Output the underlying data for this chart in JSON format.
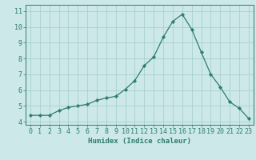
{
  "x": [
    0,
    1,
    2,
    3,
    4,
    5,
    6,
    7,
    8,
    9,
    10,
    11,
    12,
    13,
    14,
    15,
    16,
    17,
    18,
    19,
    20,
    21,
    22,
    23
  ],
  "y": [
    4.4,
    4.4,
    4.4,
    4.7,
    4.9,
    5.0,
    5.1,
    5.35,
    5.5,
    5.6,
    6.05,
    6.6,
    7.55,
    8.1,
    9.35,
    10.35,
    10.8,
    9.85,
    8.4,
    7.0,
    6.2,
    5.25,
    4.85,
    4.2
  ],
  "line_color": "#2e7d6e",
  "marker": "D",
  "marker_size": 2.2,
  "bg_color": "#cce8e8",
  "grid_color": "#aacfcf",
  "tick_color": "#2e7d6e",
  "label_color": "#2e7d6e",
  "xlabel": "Humidex (Indice chaleur)",
  "ylim": [
    3.8,
    11.4
  ],
  "xlim": [
    -0.5,
    23.5
  ],
  "yticks": [
    4,
    5,
    6,
    7,
    8,
    9,
    10,
    11
  ],
  "xticks": [
    0,
    1,
    2,
    3,
    4,
    5,
    6,
    7,
    8,
    9,
    10,
    11,
    12,
    13,
    14,
    15,
    16,
    17,
    18,
    19,
    20,
    21,
    22,
    23
  ],
  "xlabel_fontsize": 6.5,
  "tick_fontsize": 6.0
}
